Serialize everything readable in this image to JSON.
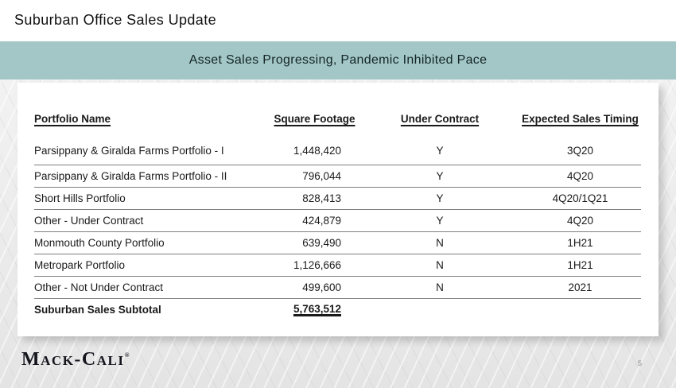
{
  "slide": {
    "title": "Suburban Office Sales Update",
    "banner_text": "Asset Sales Progressing, Pandemic Inhibited Pace",
    "page_number": "5"
  },
  "table": {
    "columns": [
      "Portfolio Name",
      "Square Footage",
      "Under Contract",
      "Expected Sales Timing"
    ],
    "rows": [
      {
        "name": "Parsippany & Giralda Farms Portfolio - I",
        "sqft": "1,448,420",
        "contract": "Y",
        "timing": "3Q20"
      },
      {
        "name": "Parsippany & Giralda Farms Portfolio - II",
        "sqft": "796,044",
        "contract": "Y",
        "timing": "4Q20"
      },
      {
        "name": "Short Hills Portfolio",
        "sqft": "828,413",
        "contract": "Y",
        "timing": "4Q20/1Q21"
      },
      {
        "name": "Other - Under Contract",
        "sqft": "424,879",
        "contract": "Y",
        "timing": "4Q20"
      },
      {
        "name": "Monmouth County Portfolio",
        "sqft": "639,490",
        "contract": "N",
        "timing": "1H21"
      },
      {
        "name": "Metropark Portfolio",
        "sqft": "1,126,666",
        "contract": "N",
        "timing": "1H21"
      },
      {
        "name": "Other - Not Under Contract",
        "sqft": "499,600",
        "contract": "N",
        "timing": "2021"
      }
    ],
    "subtotal": {
      "name": "Suburban Sales Subtotal",
      "sqft": "5,763,512"
    }
  },
  "footer": {
    "logo_text": "Mack-Cali",
    "logo_reg": "®"
  },
  "colors": {
    "banner_bg": "#a3c7c7",
    "lower_bg": "#ececec",
    "row_line": "#7f7f7f",
    "text": "#1a1a1a"
  }
}
